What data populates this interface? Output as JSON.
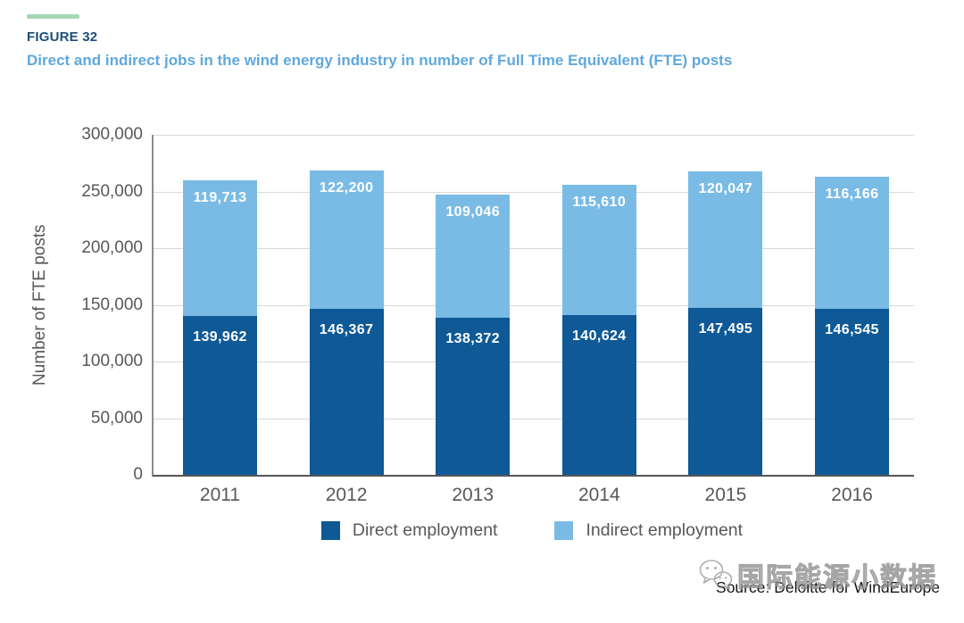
{
  "header": {
    "figure_label": "FIGURE 32",
    "title": "Direct and indirect jobs in the wind energy industry in number of Full Time Equivalent (FTE) posts",
    "accent_color": "#a5d7b4",
    "figure_label_color": "#1f4e79",
    "title_color": "#5fa8dc"
  },
  "chart_data": {
    "type": "bar",
    "stacked": true,
    "title": "Direct and indirect jobs in the wind energy industry in number of Full Time Equivalent (FTE) posts",
    "categories": [
      "2011",
      "2012",
      "2013",
      "2014",
      "2015",
      "2016"
    ],
    "series": [
      {
        "name": "Direct employment",
        "color": "#0f5996",
        "values": [
          139962,
          146367,
          138372,
          140624,
          147495,
          146545
        ],
        "labels": [
          "139,962",
          "146,367",
          "138,372",
          "140,624",
          "147,495",
          "146,545"
        ]
      },
      {
        "name": "Indirect employment",
        "color": "#7abbe5",
        "values": [
          119713,
          122200,
          109046,
          115610,
          120047,
          116166
        ],
        "labels": [
          "119,713",
          "122,200",
          "109,046",
          "115,610",
          "120,047",
          "116,166"
        ]
      }
    ],
    "xlabel": "",
    "ylabel": "Number of FTE posts",
    "ylim": [
      0,
      300000
    ],
    "ytick_interval": 50000,
    "yticks": [
      "0",
      "50,000",
      "100,000",
      "150,000",
      "200,000",
      "250,000",
      "300,000"
    ],
    "grid": true,
    "gridline_color": "#d9d9d9",
    "text_color": "#58585b",
    "legend_position": "bottom"
  },
  "footer": {
    "source": "Source: Deloitte for WindEurope",
    "watermark_text": "国际能源小数据"
  }
}
